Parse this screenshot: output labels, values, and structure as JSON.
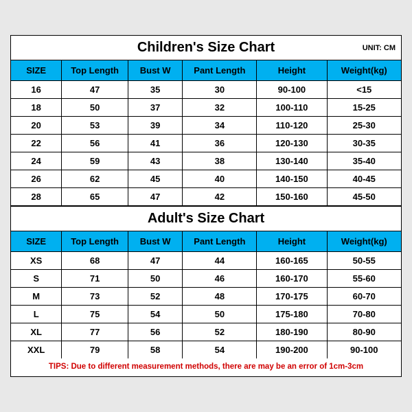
{
  "colors": {
    "header_bg": "#00b0f0",
    "border": "#000000",
    "tips_color": "#d00000",
    "page_bg": "#e8e8e8",
    "sheet_bg": "#ffffff"
  },
  "layout": {
    "col_widths_pct": [
      13,
      17,
      14,
      19,
      18,
      19
    ]
  },
  "children_chart": {
    "title": "Children's Size Chart",
    "unit_label": "UNIT: CM",
    "columns": [
      "SIZE",
      "Top Length",
      "Bust W",
      "Pant Length",
      "Height",
      "Weight(kg)"
    ],
    "rows": [
      [
        "16",
        "47",
        "35",
        "30",
        "90-100",
        "<15"
      ],
      [
        "18",
        "50",
        "37",
        "32",
        "100-110",
        "15-25"
      ],
      [
        "20",
        "53",
        "39",
        "34",
        "110-120",
        "25-30"
      ],
      [
        "22",
        "56",
        "41",
        "36",
        "120-130",
        "30-35"
      ],
      [
        "24",
        "59",
        "43",
        "38",
        "130-140",
        "35-40"
      ],
      [
        "26",
        "62",
        "45",
        "40",
        "140-150",
        "40-45"
      ],
      [
        "28",
        "65",
        "47",
        "42",
        "150-160",
        "45-50"
      ]
    ]
  },
  "adult_chart": {
    "title": "Adult's Size Chart",
    "columns": [
      "SIZE",
      "Top Length",
      "Bust W",
      "Pant Length",
      "Height",
      "Weight(kg)"
    ],
    "rows": [
      [
        "XS",
        "68",
        "47",
        "44",
        "160-165",
        "50-55"
      ],
      [
        "S",
        "71",
        "50",
        "46",
        "160-170",
        "55-60"
      ],
      [
        "M",
        "73",
        "52",
        "48",
        "170-175",
        "60-70"
      ],
      [
        "L",
        "75",
        "54",
        "50",
        "175-180",
        "70-80"
      ],
      [
        "XL",
        "77",
        "56",
        "52",
        "180-190",
        "80-90"
      ],
      [
        "XXL",
        "79",
        "58",
        "54",
        "190-200",
        "90-100"
      ]
    ]
  },
  "tips": "TIPS: Due to different measurement methods, there are may be an error of 1cm-3cm"
}
